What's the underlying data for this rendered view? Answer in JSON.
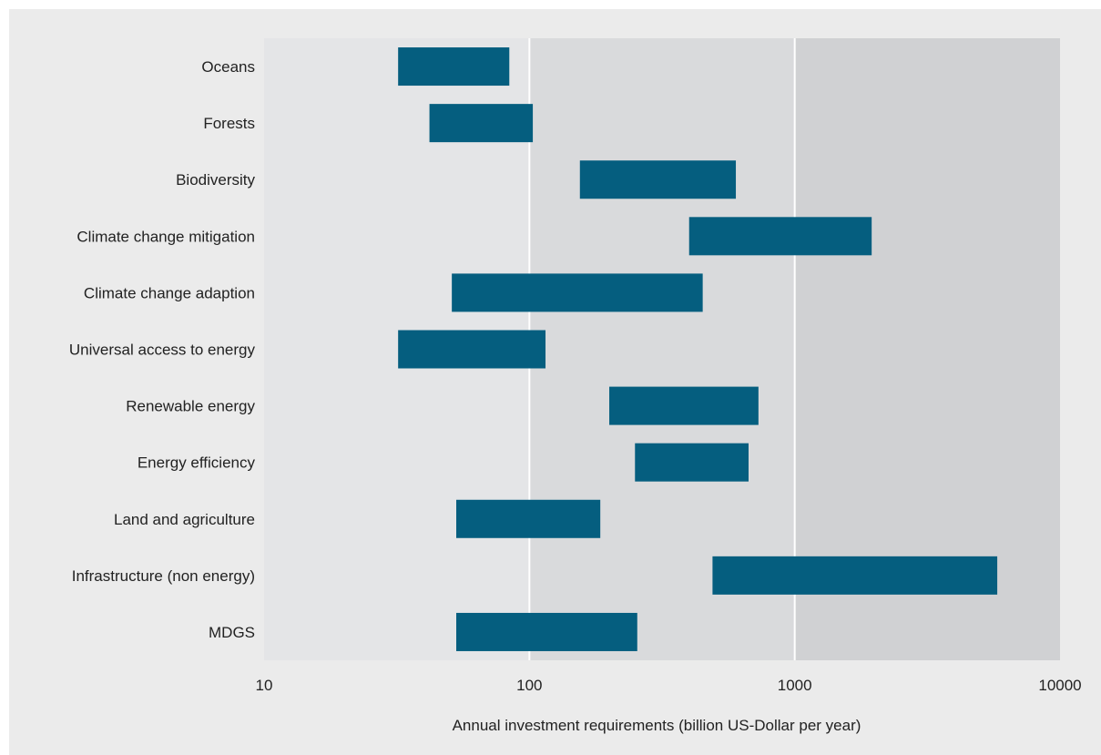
{
  "chart_data": {
    "type": "bar",
    "orientation": "horizontal",
    "style": "floating-range",
    "x_scale": "log",
    "xlim": [
      10,
      10000
    ],
    "x_ticks": [
      "10",
      "100",
      "1000",
      "10000"
    ],
    "xlabel": "Annual investment requirements (billion US-Dollar per year)",
    "ylabel": "",
    "title": "",
    "grid": "vertical lines at 100 and 1000",
    "colors": {
      "bar": "#055e7f",
      "band_1": "#e4e5e7",
      "band_2": "#d9dadc",
      "band_3": "#d0d1d3",
      "gridline": "#ffffff"
    },
    "categories": [
      "Oceans",
      "Forests",
      "Biodiversity",
      "Climate change mitigation",
      "Climate change adaption",
      "Universal access to energy",
      "Renewable energy",
      "Energy efficiency",
      "Land and agriculture",
      "Infrastructure (non energy)",
      "MDGS"
    ],
    "ranges": [
      [
        32,
        84
      ],
      [
        42,
        103
      ],
      [
        155,
        600
      ],
      [
        400,
        1950
      ],
      [
        51,
        450
      ],
      [
        32,
        115
      ],
      [
        200,
        730
      ],
      [
        250,
        670
      ],
      [
        53,
        185
      ],
      [
        490,
        5800
      ],
      [
        53,
        255
      ]
    ]
  }
}
